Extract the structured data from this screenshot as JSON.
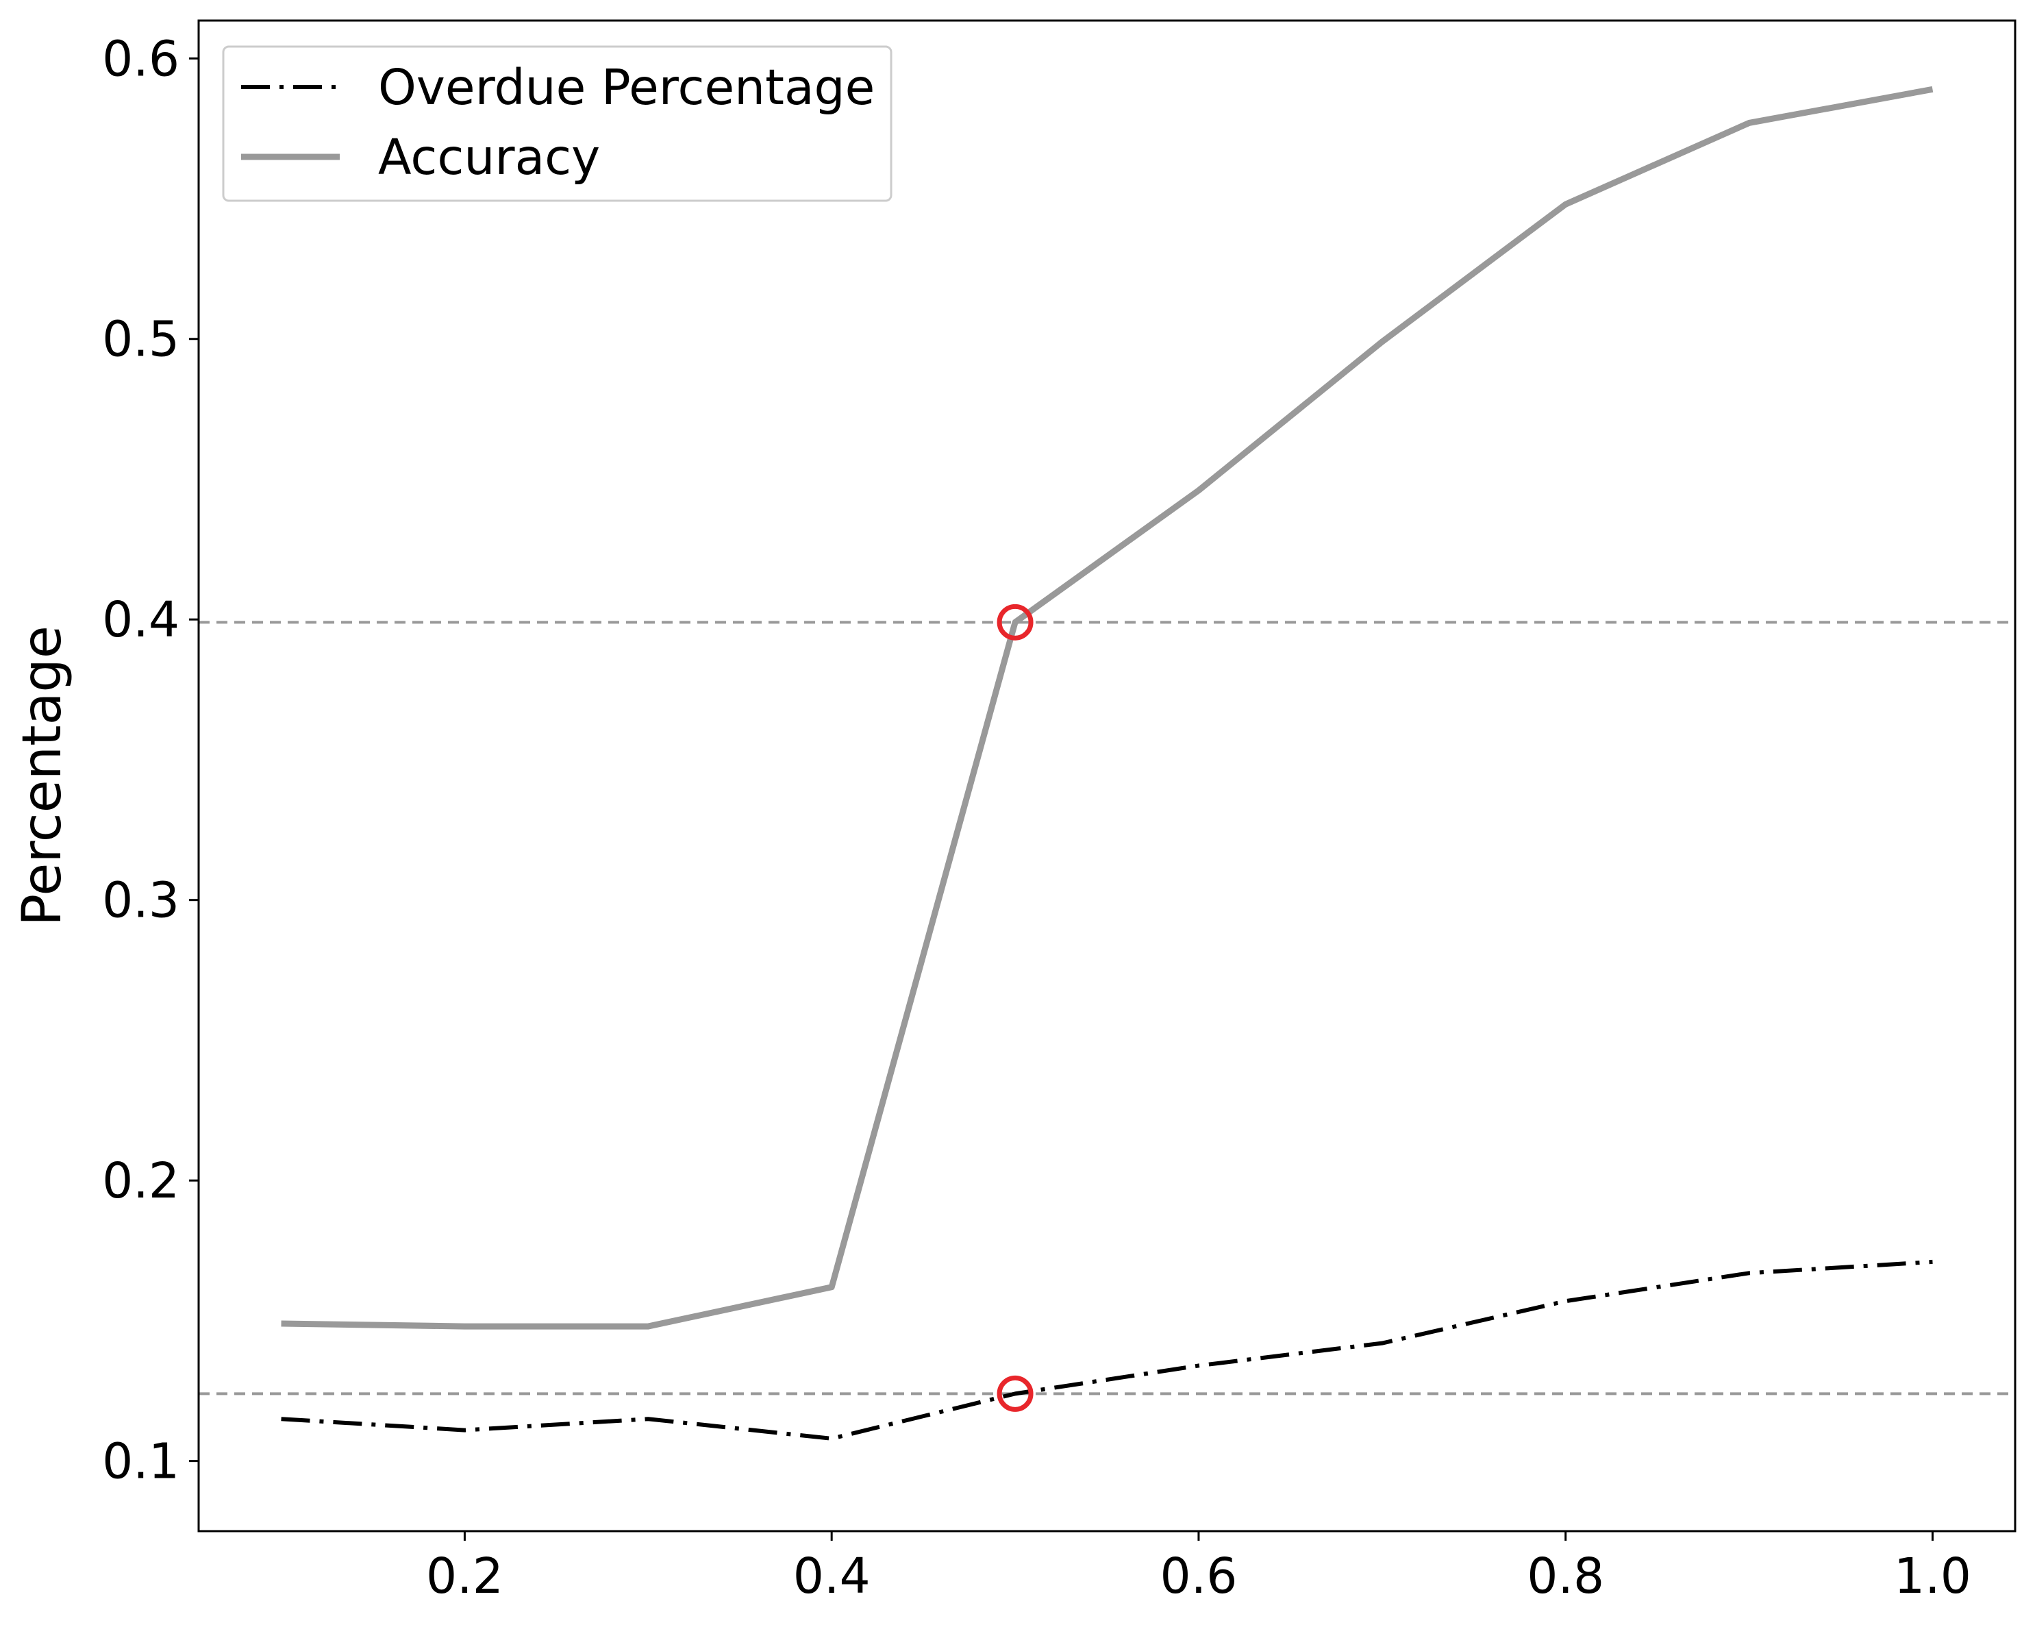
{
  "chart_data": {
    "type": "line",
    "title": "",
    "xlabel": "",
    "ylabel": "Percentage",
    "xlim": [
      0.055,
      1.045
    ],
    "ylim": [
      0.075,
      0.6135
    ],
    "xticks": [
      0.2,
      0.4,
      0.6,
      0.8,
      1.0
    ],
    "xtick_labels": [
      "0.2",
      "0.4",
      "0.6",
      "0.8",
      "1.0"
    ],
    "yticks": [
      0.1,
      0.2,
      0.3,
      0.4,
      0.5,
      0.6
    ],
    "ytick_labels": [
      "0.1",
      "0.2",
      "0.3",
      "0.4",
      "0.5",
      "0.6"
    ],
    "grid": false,
    "legend_position": "upper-left",
    "x": [
      0.1,
      0.2,
      0.3,
      0.4,
      0.5,
      0.6,
      0.7,
      0.8,
      0.9,
      1.0
    ],
    "series": [
      {
        "name": "Overdue Percentage",
        "values": [
          0.115,
          0.111,
          0.115,
          0.108,
          0.124,
          0.134,
          0.142,
          0.157,
          0.167,
          0.171
        ],
        "color": "#000000",
        "style": "dash-dot"
      },
      {
        "name": "Accuracy",
        "values": [
          0.149,
          0.148,
          0.148,
          0.162,
          0.399,
          0.446,
          0.499,
          0.548,
          0.577,
          0.589
        ],
        "color": "#999999",
        "style": "solid"
      }
    ],
    "reference_lines": [
      {
        "axis": "y",
        "value": 0.399,
        "color": "#999999",
        "style": "dashed"
      },
      {
        "axis": "y",
        "value": 0.124,
        "color": "#999999",
        "style": "dashed"
      }
    ],
    "markers": [
      {
        "x": 0.5,
        "y": 0.399,
        "color": "#e8262b",
        "shape": "open-circle"
      },
      {
        "x": 0.5,
        "y": 0.124,
        "color": "#e8262b",
        "shape": "open-circle"
      }
    ]
  }
}
